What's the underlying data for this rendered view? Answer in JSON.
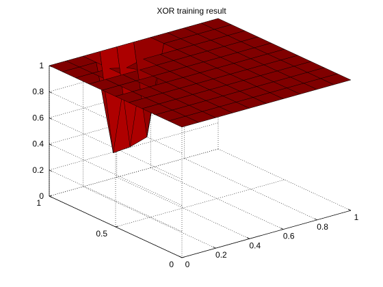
{
  "chart_data": {
    "type": "surface",
    "title": "XOR training result",
    "xlabel": "",
    "ylabel": "",
    "zlabel": "",
    "x_ticks": [
      "0",
      "0.2",
      "0.4",
      "0.6",
      "0.8",
      "1"
    ],
    "y_ticks": [
      "0",
      "0.5",
      "1"
    ],
    "z_ticks": [
      "0",
      "0.2",
      "0.4",
      "0.6",
      "0.8",
      "1"
    ],
    "xlim": [
      0,
      1
    ],
    "ylim": [
      0,
      1
    ],
    "zlim": [
      0,
      1
    ],
    "grid": true,
    "face_color_low": "#ff0000",
    "face_color_high": "#800000",
    "edge_color": "#000000",
    "x": [
      0,
      0.1,
      0.2,
      0.3,
      0.4,
      0.5,
      0.6,
      0.7,
      0.8,
      0.9,
      1
    ],
    "y": [
      0,
      0.1,
      0.2,
      0.3,
      0.4,
      0.5,
      0.6,
      0.7,
      0.8,
      0.9,
      1
    ],
    "z": [
      [
        1.0,
        1.0,
        1.0,
        1.0,
        1.0,
        1.0,
        1.0,
        1.0,
        1.0,
        1.0,
        1.0
      ],
      [
        1.0,
        1.0,
        1.0,
        1.0,
        1.0,
        1.0,
        1.0,
        1.0,
        1.0,
        1.0,
        1.0
      ],
      [
        1.0,
        1.0,
        1.0,
        1.0,
        1.0,
        1.0,
        1.0,
        1.0,
        1.0,
        1.0,
        1.0
      ],
      [
        1.0,
        1.0,
        1.0,
        1.0,
        1.0,
        1.0,
        1.0,
        1.0,
        1.0,
        1.0,
        1.0
      ],
      [
        1.0,
        1.0,
        1.0,
        1.0,
        1.0,
        1.0,
        1.0,
        1.0,
        1.0,
        1.0,
        1.0
      ],
      [
        1.0,
        1.0,
        1.0,
        1.0,
        1.0,
        1.0,
        1.0,
        1.0,
        1.0,
        1.0,
        1.0
      ],
      [
        1.0,
        1.0,
        1.0,
        1.0,
        1.0,
        1.0,
        1.0,
        1.0,
        1.0,
        1.0,
        1.0
      ],
      [
        1.0,
        1.0,
        1.0,
        1.0,
        1.0,
        1.0,
        1.0,
        1.0,
        1.0,
        1.0,
        1.0
      ],
      [
        1.0,
        1.0,
        1.0,
        0.97,
        1.0,
        1.0,
        1.0,
        1.0,
        1.0,
        1.0,
        1.0
      ],
      [
        1.0,
        1.0,
        1.0,
        0.27,
        0.28,
        0.32,
        1.0,
        1.0,
        1.0,
        1.0,
        1.0
      ],
      [
        1.0,
        1.0,
        1.0,
        1.0,
        1.0,
        1.0,
        1.0,
        1.0,
        1.0,
        1.0,
        1.0
      ]
    ]
  }
}
